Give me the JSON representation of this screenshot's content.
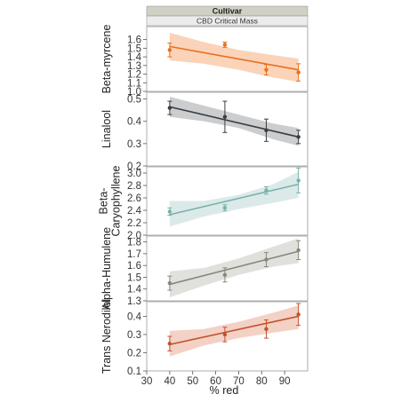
{
  "chart_data": {
    "type": "line",
    "title": "Cultivar",
    "subtitle": "CBD Critical Mass",
    "xlabel": "% red",
    "xlim": [
      30,
      100
    ],
    "x_ticks": [
      30,
      40,
      50,
      60,
      70,
      80,
      90
    ],
    "grid": false,
    "panels": [
      {
        "ylabel": "Beta-myrcene",
        "color": "#e8701e",
        "band_color": "#f8c4a1",
        "ylim": [
          1.0,
          1.75
        ],
        "y_ticks": [
          1.0,
          1.1,
          1.2,
          1.3,
          1.4,
          1.5,
          1.6
        ],
        "points": [
          {
            "x": 40,
            "y": 1.48,
            "err": 0.08
          },
          {
            "x": 64,
            "y": 1.54,
            "err": 0.03
          },
          {
            "x": 82,
            "y": 1.25,
            "err": 0.06
          },
          {
            "x": 96,
            "y": 1.22,
            "err": 0.1
          }
        ],
        "fit": {
          "x": [
            40,
            96
          ],
          "y": [
            1.52,
            1.25
          ]
        },
        "band": {
          "x": [
            40,
            55,
            70,
            85,
            96
          ],
          "upper": [
            1.68,
            1.57,
            1.48,
            1.42,
            1.38
          ],
          "lower": [
            1.36,
            1.32,
            1.25,
            1.16,
            1.11
          ]
        }
      },
      {
        "ylabel": "Linalool",
        "color": "#3a3d40",
        "band_color": "#b9bcbf",
        "ylim": [
          0.2,
          0.53
        ],
        "y_ticks": [
          0.2,
          0.3,
          0.4,
          0.5
        ],
        "points": [
          {
            "x": 40,
            "y": 0.46,
            "err": 0.03
          },
          {
            "x": 64,
            "y": 0.42,
            "err": 0.07
          },
          {
            "x": 82,
            "y": 0.36,
            "err": 0.05
          },
          {
            "x": 96,
            "y": 0.33,
            "err": 0.03
          }
        ],
        "fit": {
          "x": [
            40,
            96
          ],
          "y": [
            0.465,
            0.33
          ]
        },
        "band": {
          "x": [
            40,
            55,
            70,
            85,
            96
          ],
          "upper": [
            0.51,
            0.47,
            0.43,
            0.39,
            0.37
          ],
          "lower": [
            0.42,
            0.4,
            0.37,
            0.32,
            0.29
          ]
        }
      },
      {
        "ylabel": "Beta-Caryophyllene",
        "color": "#7ab0ac",
        "band_color": "#cfe3e2",
        "ylim": [
          2.0,
          3.1
        ],
        "y_ticks": [
          2.0,
          2.2,
          2.4,
          2.6,
          2.8,
          3.0
        ],
        "points": [
          {
            "x": 40,
            "y": 2.38,
            "err": 0.06
          },
          {
            "x": 64,
            "y": 2.44,
            "err": 0.05
          },
          {
            "x": 82,
            "y": 2.72,
            "err": 0.06
          },
          {
            "x": 96,
            "y": 2.88,
            "err": 0.2
          }
        ],
        "fit": {
          "x": [
            40,
            96
          ],
          "y": [
            2.33,
            2.82
          ]
        },
        "band": {
          "x": [
            40,
            55,
            70,
            85,
            96
          ],
          "upper": [
            2.55,
            2.55,
            2.65,
            2.82,
            3.02
          ],
          "lower": [
            2.14,
            2.3,
            2.42,
            2.52,
            2.6
          ]
        }
      },
      {
        "ylabel": "Alpha-Humulene",
        "color": "#87877d",
        "band_color": "#d6d6d0",
        "ylim": [
          1.3,
          1.85
        ],
        "y_ticks": [
          1.3,
          1.4,
          1.5,
          1.6,
          1.7,
          1.8
        ],
        "points": [
          {
            "x": 40,
            "y": 1.45,
            "err": 0.06
          },
          {
            "x": 64,
            "y": 1.52,
            "err": 0.06
          },
          {
            "x": 82,
            "y": 1.65,
            "err": 0.06
          },
          {
            "x": 96,
            "y": 1.73,
            "err": 0.08
          }
        ],
        "fit": {
          "x": [
            40,
            96
          ],
          "y": [
            1.44,
            1.72
          ]
        },
        "band": {
          "x": [
            40,
            55,
            70,
            85,
            96
          ],
          "upper": [
            1.55,
            1.58,
            1.66,
            1.76,
            1.83
          ],
          "lower": [
            1.33,
            1.43,
            1.52,
            1.59,
            1.62
          ]
        }
      },
      {
        "ylabel": "Trans Nerodilol",
        "color": "#c0522f",
        "band_color": "#efc2b2",
        "ylim": [
          0.1,
          0.48
        ],
        "y_ticks": [
          0.1,
          0.2,
          0.3,
          0.4
        ],
        "points": [
          {
            "x": 40,
            "y": 0.25,
            "err": 0.04
          },
          {
            "x": 64,
            "y": 0.3,
            "err": 0.04
          },
          {
            "x": 82,
            "y": 0.33,
            "err": 0.05
          },
          {
            "x": 96,
            "y": 0.41,
            "err": 0.06
          }
        ],
        "fit": {
          "x": [
            40,
            96
          ],
          "y": [
            0.245,
            0.4
          ]
        },
        "band": {
          "x": [
            40,
            55,
            70,
            85,
            96
          ],
          "upper": [
            0.32,
            0.33,
            0.37,
            0.42,
            0.46
          ],
          "lower": [
            0.18,
            0.24,
            0.28,
            0.31,
            0.33
          ]
        }
      }
    ]
  }
}
